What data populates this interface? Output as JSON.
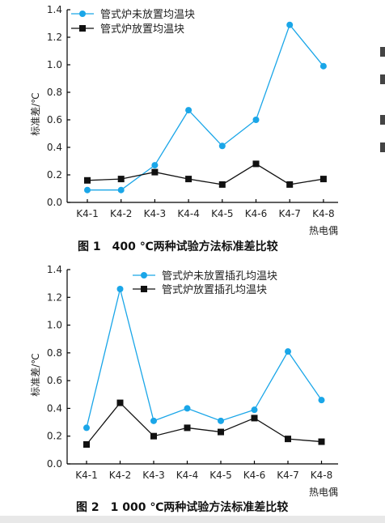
{
  "chart_data": [
    {
      "type": "line",
      "caption": "图 1　400 ℃两种试验方法标准差比较",
      "ylabel": "标准差/℃",
      "xlabel": "热电偶",
      "categories": [
        "K4-1",
        "K4-2",
        "K4-3",
        "K4-4",
        "K4-5",
        "K4-6",
        "K4-7",
        "K4-8"
      ],
      "ylim": [
        0,
        1.4
      ],
      "yticks": [
        "0.0",
        "0.2",
        "0.4",
        "0.6",
        "0.8",
        "1.0",
        "1.2",
        "1.4"
      ],
      "legend_position": "top-left",
      "grid": false,
      "series": [
        {
          "name": "管式炉未放置均温块",
          "color": "#1aa6e8",
          "marker": "circle",
          "values": [
            0.09,
            0.09,
            0.27,
            0.67,
            0.41,
            0.6,
            1.29,
            0.99
          ]
        },
        {
          "name": "管式炉放置均温块",
          "color": "#111111",
          "marker": "square",
          "values": [
            0.16,
            0.17,
            0.22,
            0.17,
            0.13,
            0.28,
            0.13,
            0.17
          ]
        }
      ]
    },
    {
      "type": "line",
      "caption": "图 2　1 000 ℃两种试验方法标准差比较",
      "ylabel": "标准差/℃",
      "xlabel": "热电偶",
      "categories": [
        "K4-1",
        "K4-2",
        "K4-3",
        "K4-4",
        "K4-5",
        "K4-6",
        "K4-7",
        "K4-8"
      ],
      "ylim": [
        0,
        1.4
      ],
      "yticks": [
        "0.0",
        "0.2",
        "0.4",
        "0.6",
        "0.8",
        "1.0",
        "1.2",
        "1.4"
      ],
      "legend_position": "top-center",
      "grid": false,
      "series": [
        {
          "name": "管式炉未放置插孔均温块",
          "color": "#1aa6e8",
          "marker": "circle",
          "values": [
            0.26,
            1.26,
            0.31,
            0.4,
            0.31,
            0.39,
            0.81,
            0.46
          ]
        },
        {
          "name": "管式炉放置插孔均温块",
          "color": "#111111",
          "marker": "square",
          "values": [
            0.14,
            0.44,
            0.2,
            0.26,
            0.23,
            0.33,
            0.18,
            0.16
          ]
        }
      ]
    }
  ]
}
